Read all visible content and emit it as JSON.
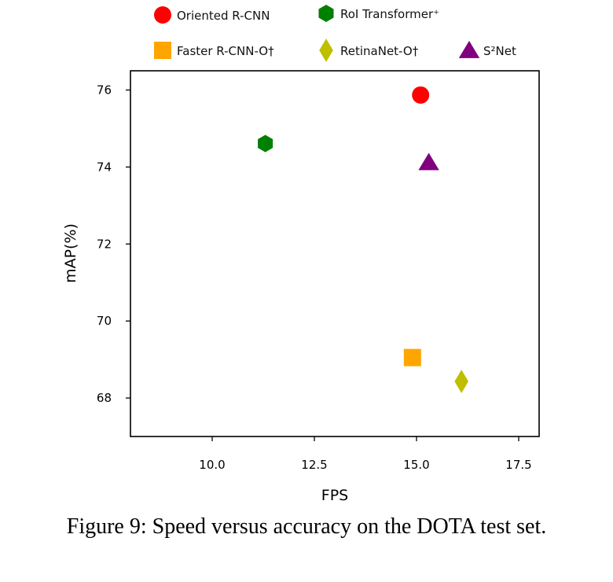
{
  "chart_data": {
    "type": "scatter",
    "xlabel": "FPS",
    "ylabel": "mAP(%)",
    "xlim": [
      8.0,
      18.0
    ],
    "ylim": [
      67.0,
      76.5
    ],
    "xticks": [
      "10.0",
      "12.5",
      "15.0",
      "17.5"
    ],
    "yticks": [
      "68",
      "70",
      "72",
      "74",
      "76"
    ],
    "grid": false,
    "legend": "top",
    "series": [
      {
        "name": "Oriented R-CNN",
        "x": 15.1,
        "y": 75.87,
        "marker": "circle",
        "color": "#ff0000"
      },
      {
        "name": "RoI Transformer⁺",
        "x": 11.3,
        "y": 74.61,
        "marker": "hexagon",
        "color": "#008000"
      },
      {
        "name": "Faster R-CNN-O†",
        "x": 14.9,
        "y": 69.05,
        "marker": "square",
        "color": "#ffa500"
      },
      {
        "name": "RetinaNet-O†",
        "x": 16.1,
        "y": 68.43,
        "marker": "diamond",
        "color": "#bfbf00"
      },
      {
        "name": "S²Net",
        "x": 15.3,
        "y": 74.12,
        "marker": "triangle",
        "color": "#800080"
      }
    ]
  },
  "caption": "Figure 9: Speed versus accuracy on the DOTA test set."
}
